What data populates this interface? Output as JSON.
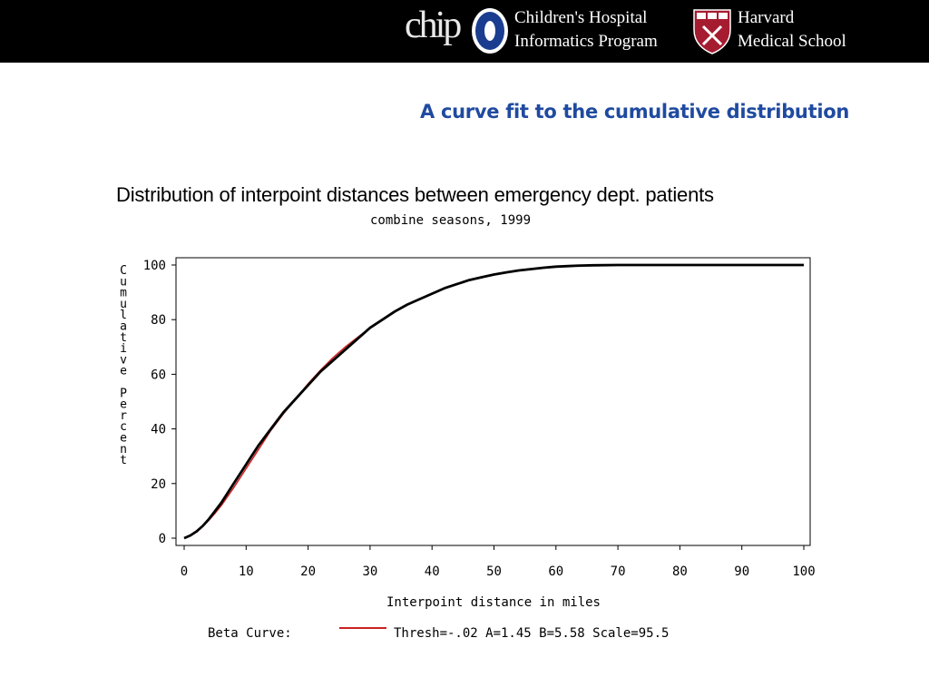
{
  "header": {
    "logo_text": "chip",
    "org1_line1": "Children's Hospital",
    "org1_line2": "Informatics Program",
    "org2_line1": "Harvard",
    "org2_line2": "Medical School",
    "colors": {
      "banner": "#000000",
      "shield": "#a51c30"
    }
  },
  "slide": {
    "title": "A curve fit to the cumulative distribution",
    "title_color": "#1f4aa0"
  },
  "chart_data": {
    "type": "line",
    "title": "Distribution of interpoint distances between emergency dept. patients",
    "subtitle": "combine seasons, 1999",
    "xlabel": "Interpoint distance in miles",
    "ylabel": "Cumulative Percent",
    "xlim": [
      0,
      100
    ],
    "ylim": [
      0,
      100
    ],
    "xticks": [
      "0",
      "10",
      "20",
      "30",
      "40",
      "50",
      "60",
      "70",
      "80",
      "90",
      "100"
    ],
    "yticks": [
      "0",
      "20",
      "40",
      "60",
      "80",
      "100"
    ],
    "grid": false,
    "legend_label": "Beta Curve:",
    "series": [
      {
        "name": "",
        "color": "#000000",
        "x": [
          0,
          1,
          2,
          3,
          4,
          5,
          6,
          8,
          10,
          12,
          14,
          16,
          18,
          20,
          22,
          24,
          26,
          28,
          30,
          32,
          34,
          36,
          38,
          40,
          42,
          44,
          46,
          48,
          50,
          52,
          54,
          56,
          58,
          60,
          62,
          64,
          66,
          70,
          75,
          80,
          90,
          100
        ],
        "y": [
          0,
          1,
          2.5,
          4.5,
          7,
          10,
          13,
          20,
          27,
          34,
          40,
          46,
          51,
          56,
          61,
          65,
          69,
          73,
          77,
          80,
          83,
          85.5,
          87.5,
          89.5,
          91.5,
          93,
          94.5,
          95.5,
          96.5,
          97.3,
          98,
          98.5,
          99,
          99.4,
          99.6,
          99.8,
          99.9,
          100,
          100,
          100,
          100,
          100
        ]
      },
      {
        "name": "Thresh=-.02 A=1.45 B=5.58 Scale=95.5",
        "color": "#cc2222",
        "x": [
          0,
          1,
          2,
          3,
          4,
          5,
          6,
          8,
          10,
          12,
          14,
          16,
          18,
          20,
          22,
          24,
          26,
          28,
          30,
          32,
          34,
          36,
          38,
          40,
          42,
          44,
          46,
          48,
          50,
          52,
          54,
          56,
          58,
          60,
          62,
          64,
          66
        ],
        "y": [
          0,
          0.8,
          2.3,
          4.3,
          6.6,
          9.2,
          12,
          18.5,
          25.5,
          32.5,
          39.5,
          45.5,
          51,
          56.5,
          61.5,
          66,
          70,
          73.5,
          77,
          80,
          82.8,
          85.3,
          87.5,
          89.6,
          91.4,
          93,
          94.4,
          95.6,
          96.6,
          97.4,
          98.1,
          98.6,
          99,
          99.3,
          99.5,
          99.7,
          99.8
        ]
      }
    ]
  }
}
